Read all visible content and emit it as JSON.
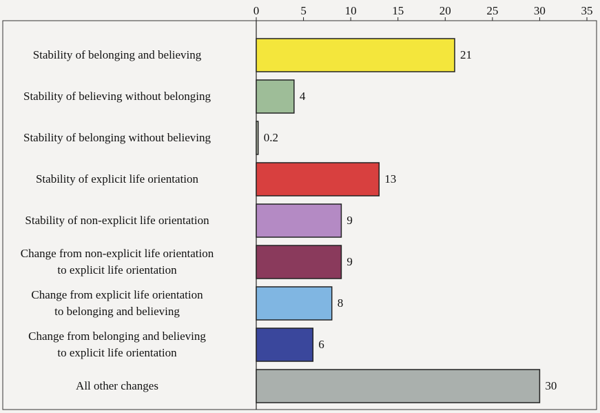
{
  "chart_data": {
    "type": "barh",
    "categories": [
      "Stability of belonging and believing",
      "Stability of believing without belonging",
      "Stability of belonging without believing",
      "Stability of explicit life orientation",
      "Stability of non-explicit life orientation",
      "Change from non-explicit life orientation\nto explicit life orientation",
      "Change from explicit life orientation\nto belonging and believing",
      "Change from belonging and believing\nto explicit life orientation",
      "All other changes"
    ],
    "values": [
      21,
      4,
      0.2,
      13,
      9,
      9,
      8,
      6,
      30
    ],
    "colors": [
      "#f4e63c",
      "#9ebd98",
      "#b9c2b0",
      "#d8403f",
      "#b48ac4",
      "#8a3a5c",
      "#80b6e2",
      "#3a479c",
      "#aab0ad"
    ],
    "xlim": [
      0,
      35
    ],
    "xticks": [
      0,
      5,
      10,
      15,
      20,
      25,
      30,
      35
    ],
    "grid": false
  }
}
